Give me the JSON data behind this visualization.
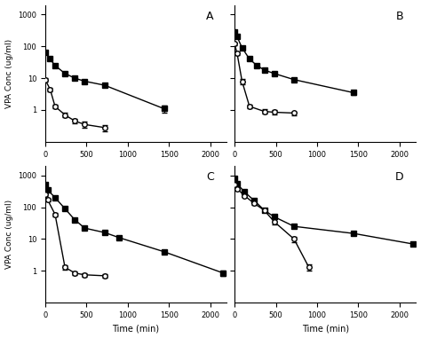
{
  "panels": [
    "A",
    "B",
    "C",
    "D"
  ],
  "background_color": "#ffffff",
  "panel_A": {
    "total_x": [
      0,
      60,
      120,
      240,
      360,
      480,
      720,
      1440
    ],
    "total_y": [
      65,
      40,
      25,
      14,
      10,
      8,
      6,
      1.1
    ],
    "total_yerr": [
      5,
      4,
      3,
      1.5,
      1.2,
      1.0,
      0.8,
      0.3
    ],
    "unbound_x": [
      0,
      60,
      120,
      240,
      360,
      480,
      720
    ],
    "unbound_y": [
      9,
      4.5,
      1.3,
      0.7,
      0.45,
      0.35,
      0.28
    ],
    "unbound_yerr": [
      1.0,
      0.6,
      0.2,
      0.12,
      0.08,
      0.07,
      0.06
    ]
  },
  "panel_B": {
    "total_x": [
      0,
      30,
      90,
      180,
      270,
      360,
      480,
      720,
      1440
    ],
    "total_y": [
      280,
      200,
      90,
      40,
      25,
      18,
      14,
      9,
      3.5
    ],
    "total_yerr": [
      20,
      15,
      8,
      4,
      2.5,
      2.0,
      1.5,
      1.2,
      0.5
    ],
    "unbound_x": [
      0,
      30,
      90,
      180,
      360,
      480,
      720
    ],
    "unbound_y": [
      120,
      60,
      8,
      1.3,
      0.9,
      0.85,
      0.8
    ],
    "unbound_yerr": [
      15,
      8,
      1.5,
      0.2,
      0.15,
      0.12,
      0.1
    ]
  },
  "panel_C": {
    "total_x": [
      0,
      30,
      120,
      240,
      360,
      480,
      720,
      900,
      1440,
      2160
    ],
    "total_y": [
      500,
      350,
      200,
      90,
      40,
      22,
      16,
      11,
      4.0,
      0.85
    ],
    "total_yerr": [
      35,
      28,
      18,
      10,
      5,
      3,
      2,
      1.5,
      0.5,
      0.15
    ],
    "unbound_x": [
      0,
      30,
      120,
      240,
      360,
      480,
      720
    ],
    "unbound_y": [
      250,
      170,
      60,
      1.3,
      0.85,
      0.75,
      0.7
    ],
    "unbound_yerr": [
      25,
      18,
      8,
      0.2,
      0.12,
      0.1,
      0.08
    ]
  },
  "panel_D": {
    "total_x": [
      0,
      30,
      120,
      240,
      360,
      480,
      720,
      1440,
      2160
    ],
    "total_y": [
      800,
      550,
      300,
      160,
      80,
      50,
      25,
      15,
      7
    ],
    "total_yerr": [
      60,
      45,
      25,
      15,
      8,
      6,
      3,
      2,
      1
    ],
    "unbound_x": [
      0,
      30,
      120,
      240,
      360,
      480,
      720,
      900
    ],
    "unbound_y": [
      500,
      380,
      230,
      130,
      80,
      35,
      10,
      1.3
    ],
    "unbound_yerr": [
      45,
      35,
      22,
      12,
      10,
      6,
      2,
      0.3
    ]
  },
  "xlim": [
    0,
    2200
  ],
  "xticks": [
    0,
    500,
    1000,
    1500,
    2000
  ],
  "ylim_log": [
    0.1,
    2000
  ],
  "ylabel": "VPA Conc (ug/ml)",
  "xlabel": "Time (min)",
  "total_color": "#000000",
  "unbound_color": "#000000",
  "marker_total": "s",
  "marker_unbound": "o",
  "markersize": 4,
  "linewidth": 1.0,
  "capsize": 2,
  "elinewidth": 0.7
}
